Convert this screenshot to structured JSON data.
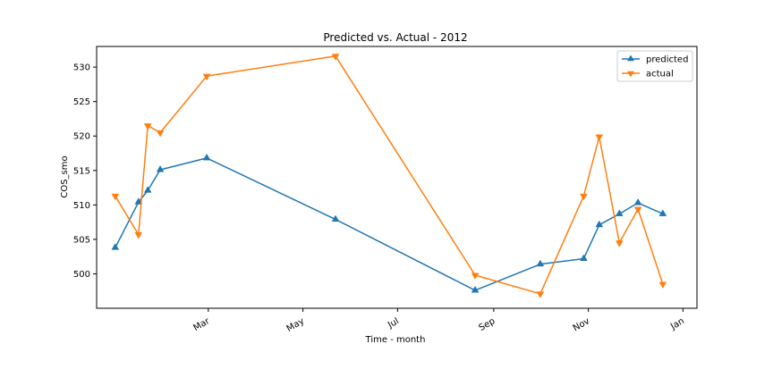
{
  "chart_data": {
    "type": "line",
    "title": "Predicted vs. Actual - 2012",
    "xlabel": "Time - month",
    "ylabel": "COS_smo",
    "x_ticks": [
      "Mar",
      "May",
      "Jul",
      "Sep",
      "Nov",
      "Jan"
    ],
    "x_tick_dates": [
      "2012-03-01",
      "2012-05-01",
      "2012-07-01",
      "2012-09-01",
      "2012-11-01",
      "2013-01-01"
    ],
    "xlim": [
      "2011-12-20",
      "2013-01-10"
    ],
    "y_ticks": [
      500,
      505,
      510,
      515,
      520,
      525,
      530
    ],
    "ylim": [
      495,
      533
    ],
    "grid": false,
    "legend_position": "top-right",
    "x": [
      "2012-01-01",
      "2012-01-16",
      "2012-01-22",
      "2012-01-30",
      "2012-02-29",
      "2012-05-22",
      "2012-08-20",
      "2012-10-01",
      "2012-10-29",
      "2012-11-08",
      "2012-11-21",
      "2012-12-03",
      "2012-12-19"
    ],
    "series": [
      {
        "name": "predicted",
        "color": "#1f77b4",
        "marker": "triangle-up",
        "x": [
          "2012-01-01",
          "2012-01-16",
          "2012-01-22",
          "2012-01-30",
          "2012-02-29",
          "2012-05-22",
          "2012-08-20",
          "2012-10-01",
          "2012-10-29",
          "2012-11-08",
          "2012-11-21",
          "2012-12-03",
          "2012-12-19"
        ],
        "values": [
          503.8,
          510.4,
          512.1,
          515.1,
          516.8,
          507.9,
          497.6,
          501.4,
          502.2,
          507.1,
          508.7,
          510.3,
          508.7
        ]
      },
      {
        "name": "actual",
        "color": "#ff7f0e",
        "marker": "triangle-down",
        "x": [
          "2012-01-01",
          "2012-01-16",
          "2012-01-22",
          "2012-01-30",
          "2012-02-29",
          "2012-05-22",
          "2012-08-20",
          "2012-10-01",
          "2012-10-29",
          "2012-11-08",
          "2012-11-21",
          "2012-12-03",
          "2012-12-19"
        ],
        "values": [
          511.3,
          505.7,
          521.5,
          520.5,
          528.7,
          531.6,
          499.8,
          497.1,
          511.3,
          519.9,
          504.5,
          509.4,
          498.5
        ]
      }
    ]
  }
}
